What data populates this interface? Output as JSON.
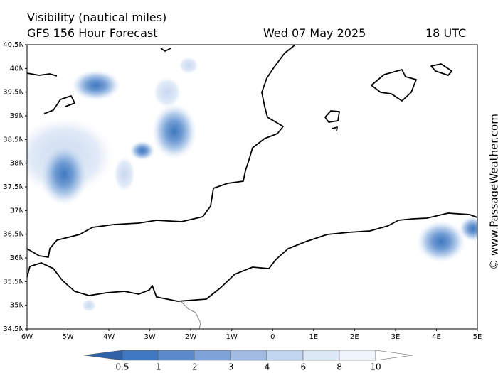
{
  "header": {
    "title": "Visibility (nautical miles)",
    "subtitle": "GFS 156 Hour Forecast",
    "date": "Wed 07 May 2025",
    "time": "18 UTC"
  },
  "map": {
    "lat_labels": [
      "40.5N",
      "40N",
      "39.5N",
      "39N",
      "38.5N",
      "38N",
      "37.5N",
      "37N",
      "36.5N",
      "36N",
      "35.5N",
      "35N",
      "34.5N"
    ],
    "lon_labels": [
      "6W",
      "5W",
      "4W",
      "3W",
      "2W",
      "1W",
      "0",
      "1E",
      "2E",
      "3E",
      "4E",
      "5E"
    ]
  },
  "colorbar": {
    "labels": [
      "0.5",
      "1",
      "2",
      "3",
      "4",
      "6",
      "8",
      "10"
    ]
  },
  "watermark": "© www.PassageWeather.com"
}
